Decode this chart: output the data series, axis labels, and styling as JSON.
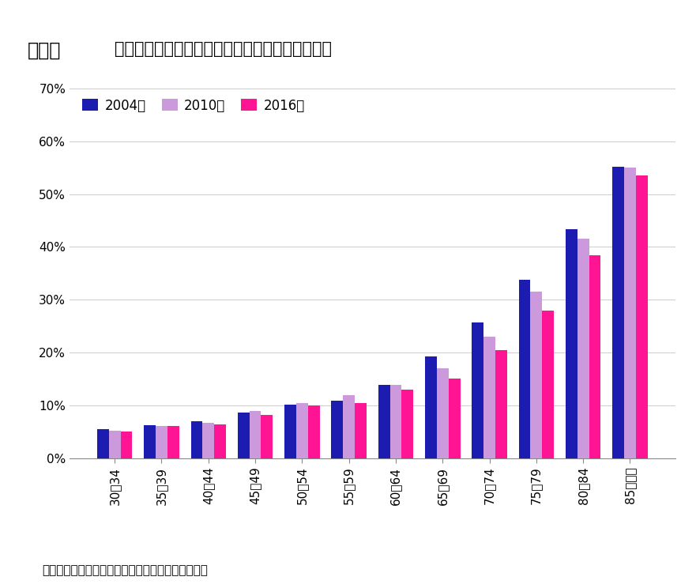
{
  "title_prefix": "図表３",
  "title_text": "健康上の問題で日常生活に影響がある割合の推移",
  "categories": [
    "30〜34",
    "35〜39",
    "40〜44",
    "45〜49",
    "50〜54",
    "55〜59",
    "60〜64",
    "65〜69",
    "70〜74",
    "75〜79",
    "80〜84",
    "85歳以上"
  ],
  "series": {
    "2004年": [
      5.5,
      6.3,
      7.0,
      8.7,
      10.2,
      11.0,
      14.0,
      19.3,
      25.8,
      33.8,
      43.3,
      55.2
    ],
    "2010年": [
      5.3,
      6.2,
      6.8,
      9.0,
      10.5,
      12.0,
      14.0,
      17.0,
      23.0,
      31.5,
      41.5,
      55.0
    ],
    "2016年": [
      5.2,
      6.1,
      6.5,
      8.3,
      10.0,
      10.5,
      13.0,
      15.2,
      20.5,
      28.0,
      38.5,
      53.5
    ]
  },
  "colors": {
    "2004年": "#1C1CB0",
    "2010年": "#CC99DD",
    "2016年": "#FF1493"
  },
  "legend_labels": [
    "2004年",
    "2010年",
    "2016年"
  ],
  "ylim": [
    0,
    70
  ],
  "yticks": [
    0,
    10,
    20,
    30,
    40,
    50,
    60,
    70
  ],
  "ytick_labels": [
    "0%",
    "10%",
    "20%",
    "30%",
    "40%",
    "50%",
    "60%",
    "70%"
  ],
  "footer": "（資料）厚生労働省「国民生活基礎調査」（各年）",
  "background_color": "#ffffff",
  "bar_width": 0.25
}
